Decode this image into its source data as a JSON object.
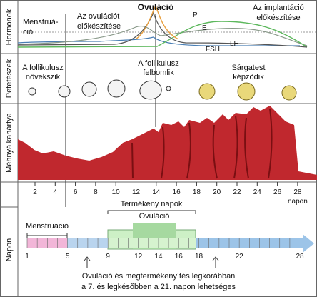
{
  "side_labels": {
    "hormones": "Hormonok",
    "ovary": "Petefészek",
    "endometrium": "Méhnyálkahártya",
    "timeline": "Napon"
  },
  "phases": {
    "menstruation": [
      "Menstruá-",
      "ció"
    ],
    "pre_ovulation": [
      "Az ovulációt",
      "előkészítése"
    ],
    "ovulation": "Ovuláció",
    "implantation": [
      "Az implantáció",
      "előkészítése"
    ]
  },
  "hormones": {
    "P": "P",
    "E": "E",
    "LH": "LH",
    "FSH": "FSH"
  },
  "ovary": {
    "growth": [
      "A follikulusz",
      "növekszik"
    ],
    "rupture": [
      "A follikulusz",
      "felbomlik"
    ],
    "corpus_luteum": [
      "Sárgatest",
      "képződik"
    ]
  },
  "day_axis": {
    "days": [
      2,
      4,
      6,
      8,
      10,
      12,
      14,
      16,
      18,
      20,
      22,
      24,
      26,
      28
    ],
    "unit": "napon"
  },
  "timeline": {
    "fertile": "Termékeny napok",
    "menstruation": "Menstruáció",
    "ovulation": "Ovuláció",
    "days": [
      1,
      5,
      9,
      12,
      14,
      16,
      18,
      22,
      28
    ],
    "note": [
      "Ovuláció és megtermékenyítés legkorábban",
      "a 7. és legkésőbben a 21. napon lehetséges"
    ]
  }
}
